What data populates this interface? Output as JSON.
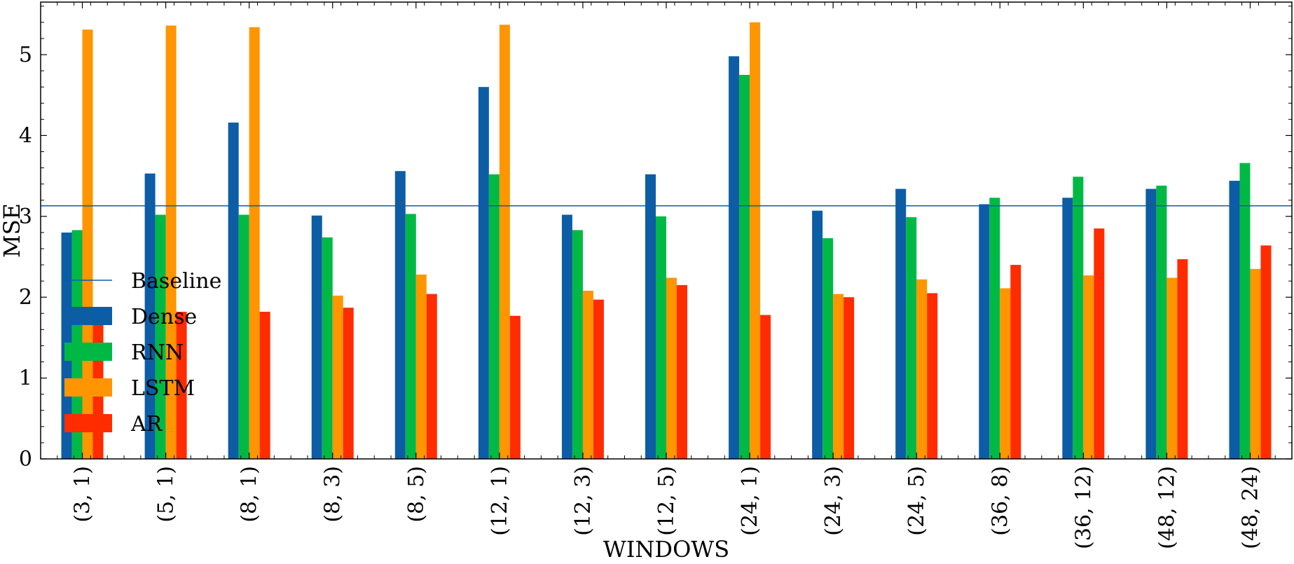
{
  "chart_data": {
    "type": "bar",
    "title": "",
    "xlabel": "WINDOWS",
    "ylabel": "MSE",
    "ylim": [
      0,
      5.65
    ],
    "yticks": [
      0,
      1,
      2,
      3,
      4,
      5
    ],
    "categories": [
      "(3, 1)",
      "(5, 1)",
      "(8, 1)",
      "(8, 3)",
      "(8, 5)",
      "(12, 1)",
      "(12, 3)",
      "(12, 5)",
      "(24, 1)",
      "(24, 3)",
      "(24, 5)",
      "(36, 8)",
      "(36, 12)",
      "(48, 12)",
      "(48, 24)"
    ],
    "baseline": {
      "name": "Baseline",
      "value": 3.13,
      "color": "#0C5DA5"
    },
    "series": [
      {
        "name": "Dense",
        "color": "#0C5DA5",
        "values": [
          2.8,
          3.53,
          4.16,
          3.01,
          3.56,
          4.6,
          3.02,
          3.52,
          4.98,
          3.07,
          3.34,
          3.15,
          3.23,
          3.34,
          3.44
        ]
      },
      {
        "name": "RNN",
        "color": "#00B945",
        "values": [
          2.83,
          3.02,
          3.02,
          2.74,
          3.03,
          3.52,
          2.83,
          3.0,
          4.75,
          2.73,
          2.99,
          3.23,
          3.49,
          3.38,
          3.66
        ]
      },
      {
        "name": "LSTM",
        "color": "#FF9500",
        "values": [
          5.31,
          5.36,
          5.34,
          2.02,
          2.28,
          5.37,
          2.08,
          2.24,
          5.4,
          2.04,
          2.22,
          2.11,
          2.27,
          2.24,
          2.35
        ]
      },
      {
        "name": "AR",
        "color": "#FF2C00",
        "values": [
          1.72,
          1.82,
          1.82,
          1.87,
          2.04,
          1.77,
          1.97,
          2.15,
          1.78,
          2.0,
          2.05,
          2.4,
          2.85,
          2.47,
          2.64
        ]
      }
    ],
    "legend_position": "left",
    "grid": false
  }
}
